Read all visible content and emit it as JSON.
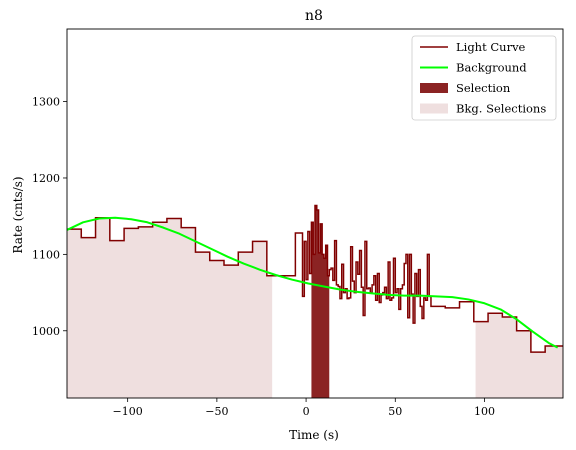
{
  "chart_data": {
    "type": "line",
    "title": "n8",
    "xlabel": "Time (s)",
    "ylabel": "Rate (cnts/s)",
    "xlim": [
      -134,
      144
    ],
    "ylim": [
      912,
      1395
    ],
    "xticks": [
      -100,
      -50,
      0,
      50,
      100
    ],
    "yticks": [
      1000,
      1100,
      1200,
      1300
    ],
    "legend_placement": "top-right",
    "grid": false,
    "colors": {
      "light_curve": "#800000",
      "background": "#00ff00",
      "selection": "#8b2323",
      "bkg_selection": "#efdfdf"
    },
    "legend": [
      {
        "key": "light_curve",
        "label": "Light Curve",
        "kind": "line"
      },
      {
        "key": "background",
        "label": "Background",
        "kind": "line"
      },
      {
        "key": "selection",
        "label": "Selection",
        "kind": "patch"
      },
      {
        "key": "bkg_selection",
        "label": "Bkg. Selections",
        "kind": "patch"
      }
    ],
    "light_curve": {
      "edges": [
        -134,
        -126,
        -118,
        -110,
        -102,
        -94,
        -86,
        -78,
        -70,
        -62,
        -54,
        -46,
        -38,
        -30,
        -22,
        -14,
        -6,
        -2,
        -1,
        0,
        1,
        2,
        3,
        4,
        5,
        6,
        7,
        8,
        9,
        10,
        11,
        12,
        13,
        14,
        15,
        16,
        17,
        18,
        19,
        20,
        21,
        22,
        23,
        24,
        25,
        26,
        27,
        28,
        29,
        30,
        31,
        32,
        33,
        34,
        35,
        36,
        37,
        38,
        39,
        40,
        41,
        42,
        43,
        44,
        45,
        46,
        47,
        48,
        49,
        50,
        51,
        52,
        53,
        54,
        55,
        56,
        57,
        58,
        59,
        60,
        61,
        62,
        63,
        64,
        65,
        66,
        67,
        68,
        69,
        70,
        78,
        86,
        94,
        102,
        110,
        118,
        126,
        134,
        144
      ],
      "values": [
        1133,
        1122,
        1148,
        1118,
        1134,
        1136,
        1142,
        1147,
        1135,
        1103,
        1092,
        1086,
        1103,
        1117,
        1072,
        1072,
        1128,
        1045,
        1117,
        1067,
        1130,
        1075,
        1142,
        1100,
        1164,
        1158,
        1102,
        1140,
        1100,
        1095,
        1112,
        1072,
        1080,
        1082,
        1066,
        1118,
        1060,
        1058,
        1042,
        1087,
        1050,
        1055,
        1042,
        1043,
        1110,
        1065,
        1050,
        1090,
        1074,
        1105,
        1057,
        1020,
        1117,
        1055,
        1056,
        1050,
        1060,
        1072,
        1040,
        1075,
        1037,
        1047,
        1050,
        1057,
        1042,
        1090,
        1040,
        1043,
        1095,
        1050,
        1055,
        1028,
        1055,
        1060,
        1088,
        1100,
        1017,
        1100,
        1048,
        1010,
        1075,
        1045,
        1080,
        1032,
        1016,
        1043,
        1040,
        1100,
        1045,
        1032,
        1030,
        1038,
        1012,
        1023,
        1018,
        1000,
        972,
        980
      ]
    },
    "background": {
      "x": [
        -134,
        -125,
        -116,
        -107,
        -98,
        -89,
        -80,
        -71,
        -62,
        -53,
        -44,
        -35,
        -26,
        -17,
        -8,
        1,
        10,
        19,
        28,
        37,
        46,
        55,
        64,
        73,
        82,
        91,
        100,
        109,
        118,
        127,
        136,
        141
      ],
      "y": [
        1132,
        1142,
        1147,
        1148,
        1146,
        1142,
        1135,
        1127,
        1117,
        1107,
        1097,
        1088,
        1080,
        1073,
        1067,
        1062,
        1058,
        1054,
        1051,
        1049,
        1047,
        1046,
        1046,
        1045,
        1044,
        1041,
        1036,
        1028,
        1015,
        999,
        984,
        978
      ]
    },
    "selection": [
      [
        3,
        13
      ]
    ],
    "bkg_selections": [
      [
        -134,
        -19
      ],
      [
        95,
        144
      ]
    ]
  }
}
